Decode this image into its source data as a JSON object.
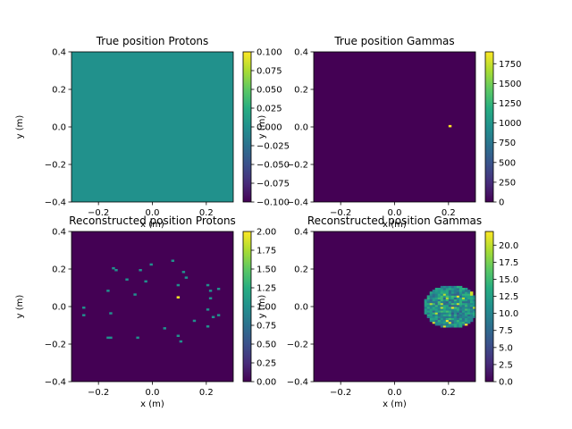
{
  "figure": {
    "background": "#ffffff"
  },
  "chart_data": [
    {
      "type": "heatmap",
      "title": "True position Protons",
      "xlabel": "x (m)",
      "ylabel": "y (m)",
      "xlim": [
        -0.3,
        0.3
      ],
      "ylim": [
        -0.4,
        0.4
      ],
      "xticks": [
        "−0.2",
        "0.0",
        "0.2"
      ],
      "yticks": [
        "−0.4",
        "−0.2",
        "0.0",
        "0.2",
        "0.4"
      ],
      "background_color": "#21918c",
      "colorbar": {
        "min": -0.1,
        "max": 0.1,
        "ticks": [
          "−0.100",
          "−0.075",
          "−0.050",
          "−0.025",
          "0.000",
          "0.025",
          "0.050",
          "0.075",
          "0.100"
        ]
      },
      "cells": []
    },
    {
      "type": "heatmap",
      "title": "True position Gammas",
      "xlabel": "x (m)",
      "ylabel": "y (m)",
      "xlim": [
        -0.3,
        0.3
      ],
      "ylim": [
        -0.4,
        0.4
      ],
      "xticks": [
        "−0.2",
        "0.0",
        "0.2"
      ],
      "yticks": [
        "−0.4",
        "−0.2",
        "0.0",
        "0.2",
        "0.4"
      ],
      "background_color": "#440154",
      "colorbar": {
        "min": 0,
        "max": 1900,
        "ticks": [
          "0",
          "250",
          "500",
          "750",
          "1000",
          "1250",
          "1500",
          "1750"
        ]
      },
      "cells": [
        {
          "x": 0.2,
          "y": 0.0,
          "value": 1900
        }
      ]
    },
    {
      "type": "heatmap",
      "title": "Reconstructed position Protons",
      "xlabel": "x (m)",
      "ylabel": "y (m)",
      "xlim": [
        -0.3,
        0.3
      ],
      "ylim": [
        -0.4,
        0.4
      ],
      "xticks": [
        "−0.2",
        "0.0",
        "0.2"
      ],
      "yticks": [
        "−0.4",
        "−0.2",
        "0.0",
        "0.2",
        "0.4"
      ],
      "background_color": "#440154",
      "colorbar": {
        "min": 0,
        "max": 2,
        "ticks": [
          "0.00",
          "0.25",
          "0.50",
          "0.75",
          "1.00",
          "1.25",
          "1.50",
          "1.75",
          "2.00"
        ]
      },
      "cells": [
        {
          "x": -0.15,
          "y": 0.2,
          "value": 1
        },
        {
          "x": -0.14,
          "y": 0.19,
          "value": 1
        },
        {
          "x": -0.1,
          "y": 0.14,
          "value": 1
        },
        {
          "x": -0.17,
          "y": 0.08,
          "value": 1
        },
        {
          "x": -0.05,
          "y": 0.19,
          "value": 1
        },
        {
          "x": -0.01,
          "y": 0.22,
          "value": 1
        },
        {
          "x": 0.07,
          "y": 0.24,
          "value": 1
        },
        {
          "x": 0.11,
          "y": 0.18,
          "value": 1
        },
        {
          "x": 0.12,
          "y": 0.15,
          "value": 1
        },
        {
          "x": -0.03,
          "y": 0.13,
          "value": 1
        },
        {
          "x": -0.07,
          "y": 0.06,
          "value": 1
        },
        {
          "x": 0.09,
          "y": 0.11,
          "value": 1
        },
        {
          "x": 0.09,
          "y": 0.045,
          "value": 2
        },
        {
          "x": 0.2,
          "y": 0.11,
          "value": 1
        },
        {
          "x": 0.21,
          "y": 0.08,
          "value": 1
        },
        {
          "x": 0.24,
          "y": 0.09,
          "value": 1
        },
        {
          "x": 0.21,
          "y": 0.04,
          "value": 1
        },
        {
          "x": -0.26,
          "y": -0.01,
          "value": 1
        },
        {
          "x": -0.26,
          "y": -0.05,
          "value": 1
        },
        {
          "x": -0.16,
          "y": -0.04,
          "value": 1
        },
        {
          "x": 0.2,
          "y": -0.02,
          "value": 1
        },
        {
          "x": 0.22,
          "y": -0.06,
          "value": 1
        },
        {
          "x": 0.24,
          "y": -0.05,
          "value": 1
        },
        {
          "x": 0.15,
          "y": -0.08,
          "value": 1
        },
        {
          "x": 0.2,
          "y": -0.11,
          "value": 1
        },
        {
          "x": 0.04,
          "y": -0.12,
          "value": 1
        },
        {
          "x": 0.09,
          "y": -0.16,
          "value": 1
        },
        {
          "x": 0.1,
          "y": -0.19,
          "value": 1
        },
        {
          "x": -0.16,
          "y": -0.17,
          "value": 1
        },
        {
          "x": -0.17,
          "y": -0.17,
          "value": 1
        },
        {
          "x": -0.06,
          "y": -0.17,
          "value": 1
        }
      ]
    },
    {
      "type": "heatmap",
      "title": "Reconstructed position Gammas",
      "xlabel": "x (m)",
      "ylabel": "y (m)",
      "xlim": [
        -0.3,
        0.3
      ],
      "ylim": [
        -0.4,
        0.4
      ],
      "xticks": [
        "−0.2",
        "0.0",
        "0.2"
      ],
      "yticks": [
        "−0.4",
        "−0.2",
        "0.0",
        "0.2",
        "0.4"
      ],
      "background_color": "#440154",
      "colorbar": {
        "min": 0,
        "max": 22,
        "ticks": [
          "0.0",
          "2.5",
          "5.0",
          "7.5",
          "10.0",
          "12.5",
          "15.0",
          "17.5",
          "20.0"
        ]
      },
      "blob": {
        "center_x": 0.21,
        "center_y": 0.0,
        "radius_x": 0.1,
        "radius_y": 0.115,
        "typical_value": 11,
        "max_value": 22
      }
    }
  ]
}
